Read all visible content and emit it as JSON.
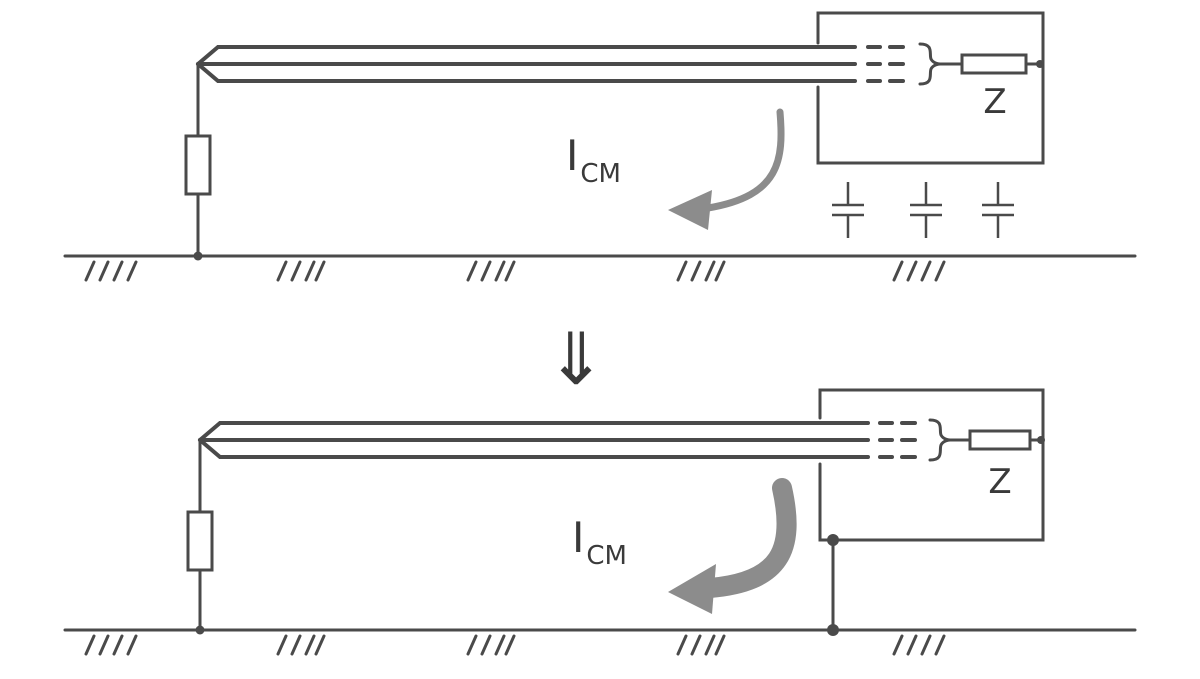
{
  "top_panel": {
    "load_label": "Z",
    "current_label_main": "I",
    "current_label_sub": "CM",
    "current_arrow_color": "#8c8c8c"
  },
  "transition_arrow": {
    "symbol": "⇓"
  },
  "bottom_panel": {
    "load_label": "Z",
    "current_label_main": "I",
    "current_label_sub": "CM",
    "current_arrow_color": "#8c8c8c"
  }
}
